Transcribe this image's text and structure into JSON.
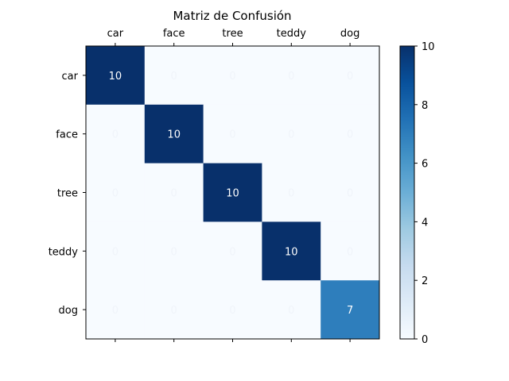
{
  "chart_data": {
    "type": "heatmap",
    "title": "Matriz de Confusión",
    "x_categories": [
      "car",
      "face",
      "tree",
      "teddy",
      "dog"
    ],
    "y_categories": [
      "car",
      "face",
      "tree",
      "teddy",
      "dog"
    ],
    "x_tick_position": "top",
    "matrix": [
      [
        10,
        0,
        0,
        0,
        0
      ],
      [
        0,
        10,
        0,
        0,
        0
      ],
      [
        0,
        0,
        10,
        0,
        0
      ],
      [
        0,
        0,
        0,
        10,
        0
      ],
      [
        0,
        0,
        0,
        0,
        7
      ]
    ],
    "colormap": "Blues",
    "color_range": [
      0,
      10
    ],
    "colorbar_ticks": [
      "0",
      "2",
      "4",
      "6",
      "8",
      "10"
    ],
    "colorbar_tick_values": [
      0,
      2,
      4,
      6,
      8,
      10
    ],
    "grid": false,
    "colors": {
      "low": "#f7fbff",
      "high": "#08306b",
      "text_on_dark": "#ffffff"
    }
  }
}
